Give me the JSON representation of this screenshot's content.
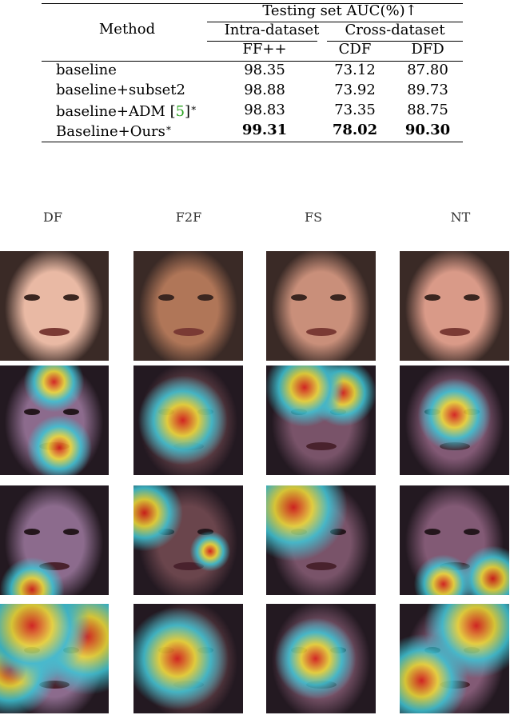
{
  "table": {
    "method_header": "Method",
    "group_header": "Testing set AUC(%)↑",
    "intra_header": "Intra-dataset",
    "cross_header": "Cross-dataset",
    "col_headers": [
      "FF++",
      "CDF",
      "DFD"
    ],
    "rows": [
      {
        "method": "baseline",
        "cite": "",
        "star": "",
        "values": [
          "98.35",
          "73.12",
          "87.80"
        ],
        "bold": false
      },
      {
        "method": "baseline+subset2",
        "cite": "",
        "star": "",
        "values": [
          "98.88",
          "73.92",
          "89.73"
        ],
        "bold": false
      },
      {
        "method": "baseline+ADM [",
        "cite": "5",
        "suffix": "]",
        "star": "∗",
        "values": [
          "98.83",
          "73.35",
          "88.75"
        ],
        "bold": false
      },
      {
        "method": "Baseline+Ours",
        "cite": "",
        "star": "∗",
        "values": [
          "99.31",
          "78.02",
          "90.30"
        ],
        "bold": true
      }
    ]
  },
  "figure": {
    "column_titles": [
      "DF",
      "F2F",
      "FS",
      "NT"
    ],
    "colors": {
      "skin_df": "#e9b9a4",
      "skin_f2f": "#b07658",
      "skin_fs": "#c98f7a",
      "skin_nt": "#d99a88",
      "tint": "#4a3fb8",
      "heat_red": "#e3201a",
      "heat_yellow": "#f5e23a",
      "heat_cyan": "#3ec7d8"
    }
  }
}
